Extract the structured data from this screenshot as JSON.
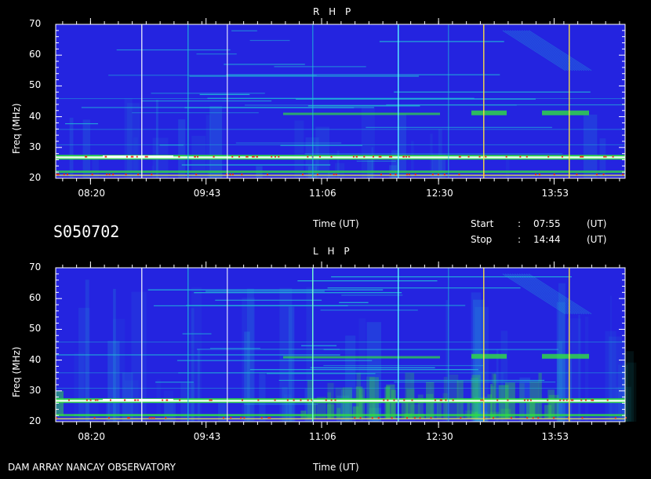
{
  "chart_data": [
    {
      "type": "heatmap",
      "title": "R H P",
      "xlabel": "Time (UT)",
      "ylabel": "Freq (MHz)",
      "x_ticks": [
        "08:20",
        "09:43",
        "11:06",
        "12:30",
        "13:53"
      ],
      "y_ticks": [
        "20",
        "30",
        "40",
        "50",
        "60",
        "70"
      ],
      "ylim": [
        20,
        70
      ],
      "x_tick_minutes": [
        500,
        583,
        666,
        750,
        833
      ],
      "xlim_minutes": [
        475,
        884
      ],
      "colors": {
        "background": "#2424e0",
        "mid": "#22c0d8",
        "high": "#30e040",
        "peak": "#ffffff"
      }
    },
    {
      "type": "heatmap",
      "title": "L H P",
      "xlabel": "Time (UT)",
      "ylabel": "Freq (MHz)",
      "x_ticks": [
        "08:20",
        "09:43",
        "11:06",
        "12:30",
        "13:53"
      ],
      "y_ticks": [
        "20",
        "30",
        "40",
        "50",
        "60",
        "70"
      ],
      "ylim": [
        20,
        70
      ],
      "x_tick_minutes": [
        500,
        583,
        666,
        750,
        833
      ],
      "xlim_minutes": [
        475,
        884
      ],
      "colors": {
        "background": "#2424e0",
        "mid": "#22c0d8",
        "high": "#30e040",
        "peak": "#ffffff"
      }
    }
  ],
  "info": {
    "id": "S050702",
    "time_label": "Time (UT)",
    "start_label": "Start",
    "start_value": "07:55",
    "stop_label": "Stop",
    "stop_value": "14:44",
    "colon": ":",
    "unit": "(UT)"
  },
  "footer": {
    "observatory": "DAM ARRAY   NANCAY OBSERVATORY",
    "time_label": "Time (UT)"
  }
}
